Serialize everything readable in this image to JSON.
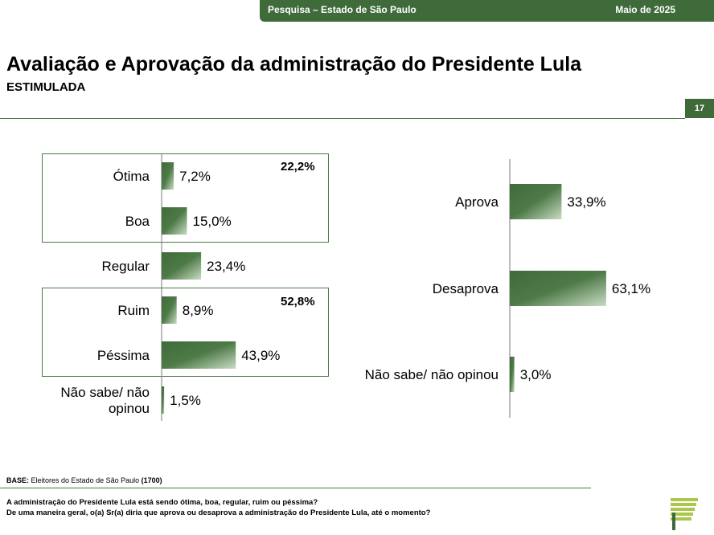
{
  "header": {
    "survey_label": "Pesquisa – Estado de São Paulo",
    "date_label": "Maio de 2025",
    "page_number": "17",
    "accent_color": "#3f6b3a"
  },
  "title": "Avaliação e Aprovação da administração do Presidente Lula",
  "subtitle": "ESTIMULADA",
  "chart_data": [
    {
      "type": "bar",
      "orientation": "horizontal",
      "categories": [
        "Ótima",
        "Boa",
        "Regular",
        "Ruim",
        "Péssima",
        "Não sabe/ não opinou"
      ],
      "values": [
        7.2,
        15.0,
        23.4,
        8.9,
        43.9,
        1.5
      ],
      "value_labels": [
        "7,2%",
        "15,0%",
        "23,4%",
        "8,9%",
        "43,9%",
        "1,5%"
      ],
      "groups": [
        {
          "categories": [
            "Ótima",
            "Boa"
          ],
          "total": 22.2,
          "total_label": "22,2%"
        },
        {
          "categories": [
            "Ruim",
            "Péssima"
          ],
          "total": 52.8,
          "total_label": "52,8%"
        }
      ],
      "bar_color": "#3f6b3a",
      "grid": false
    },
    {
      "type": "bar",
      "orientation": "horizontal",
      "categories": [
        "Aprova",
        "Desaprova",
        "Não sabe/ não opinou"
      ],
      "values": [
        33.9,
        63.1,
        3.0
      ],
      "value_labels": [
        "33,9%",
        "63,1%",
        "3,0%"
      ],
      "bar_color": "#3f6b3a",
      "grid": false
    }
  ],
  "footer": {
    "base_label": "BASE:",
    "base_text": "Eleitores do Estado de São Paulo",
    "base_count": "(1700)",
    "question_1": "A administração do Presidente Lula está sendo ótima, boa, regular, ruim ou péssima?",
    "question_2": "De uma maneira geral, o(a) Sr(a) diria que aprova ou desaprova a administração do Presidente Lula, até o momento?"
  }
}
